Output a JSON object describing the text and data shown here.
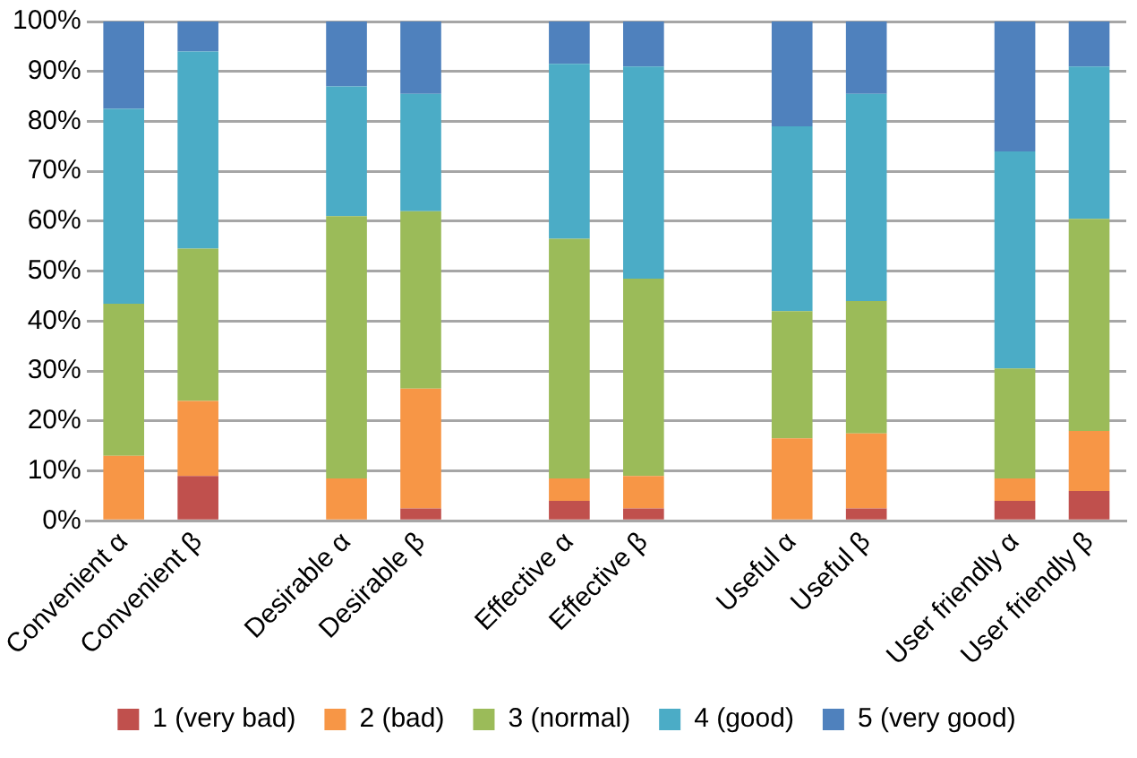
{
  "chart_data": {
    "type": "bar",
    "stacked": true,
    "categories": [
      "Convenient α",
      "Convenient β",
      null,
      "Desirable α",
      "Desirable β",
      null,
      "Effective α",
      "Effective β",
      null,
      "Useful α",
      "Useful β",
      null,
      "User friendly α",
      "User friendly β"
    ],
    "series": [
      {
        "name": "1 (very bad)",
        "color": "#c0504d",
        "values": [
          0,
          9,
          null,
          0,
          2.5,
          null,
          4,
          2.5,
          null,
          0,
          2.5,
          null,
          4,
          6
        ]
      },
      {
        "name": "2 (bad)",
        "color": "#f79646",
        "values": [
          13,
          15,
          null,
          8.5,
          24,
          null,
          4.5,
          6.5,
          null,
          16.5,
          15,
          null,
          4.5,
          12
        ]
      },
      {
        "name": "3 (normal)",
        "color": "#9bbb59",
        "values": [
          30.5,
          30.5,
          null,
          52.5,
          35.5,
          null,
          48,
          39.5,
          null,
          25.5,
          26.5,
          null,
          22,
          42.5
        ]
      },
      {
        "name": "4 (good)",
        "color": "#4bacc6",
        "values": [
          39,
          39.5,
          null,
          26,
          23.5,
          null,
          35,
          42.5,
          null,
          37,
          41.5,
          null,
          43.5,
          30.5
        ]
      },
      {
        "name": "5 (very good)",
        "color": "#4f81bd",
        "values": [
          17.5,
          6,
          null,
          13,
          14.5,
          null,
          8.5,
          9,
          null,
          21,
          14.5,
          null,
          26,
          9
        ]
      }
    ],
    "ylim": [
      0,
      100
    ],
    "yticks": [
      {
        "value": 0,
        "label": "0%"
      },
      {
        "value": 10,
        "label": "10%"
      },
      {
        "value": 20,
        "label": "20%"
      },
      {
        "value": 30,
        "label": "30%"
      },
      {
        "value": 40,
        "label": "40%"
      },
      {
        "value": 50,
        "label": "50%"
      },
      {
        "value": 60,
        "label": "60%"
      },
      {
        "value": 70,
        "label": "70%"
      },
      {
        "value": 80,
        "label": "80%"
      },
      {
        "value": 90,
        "label": "90%"
      },
      {
        "value": 100,
        "label": "100%"
      }
    ],
    "grid": "y",
    "legend": "bottom"
  }
}
